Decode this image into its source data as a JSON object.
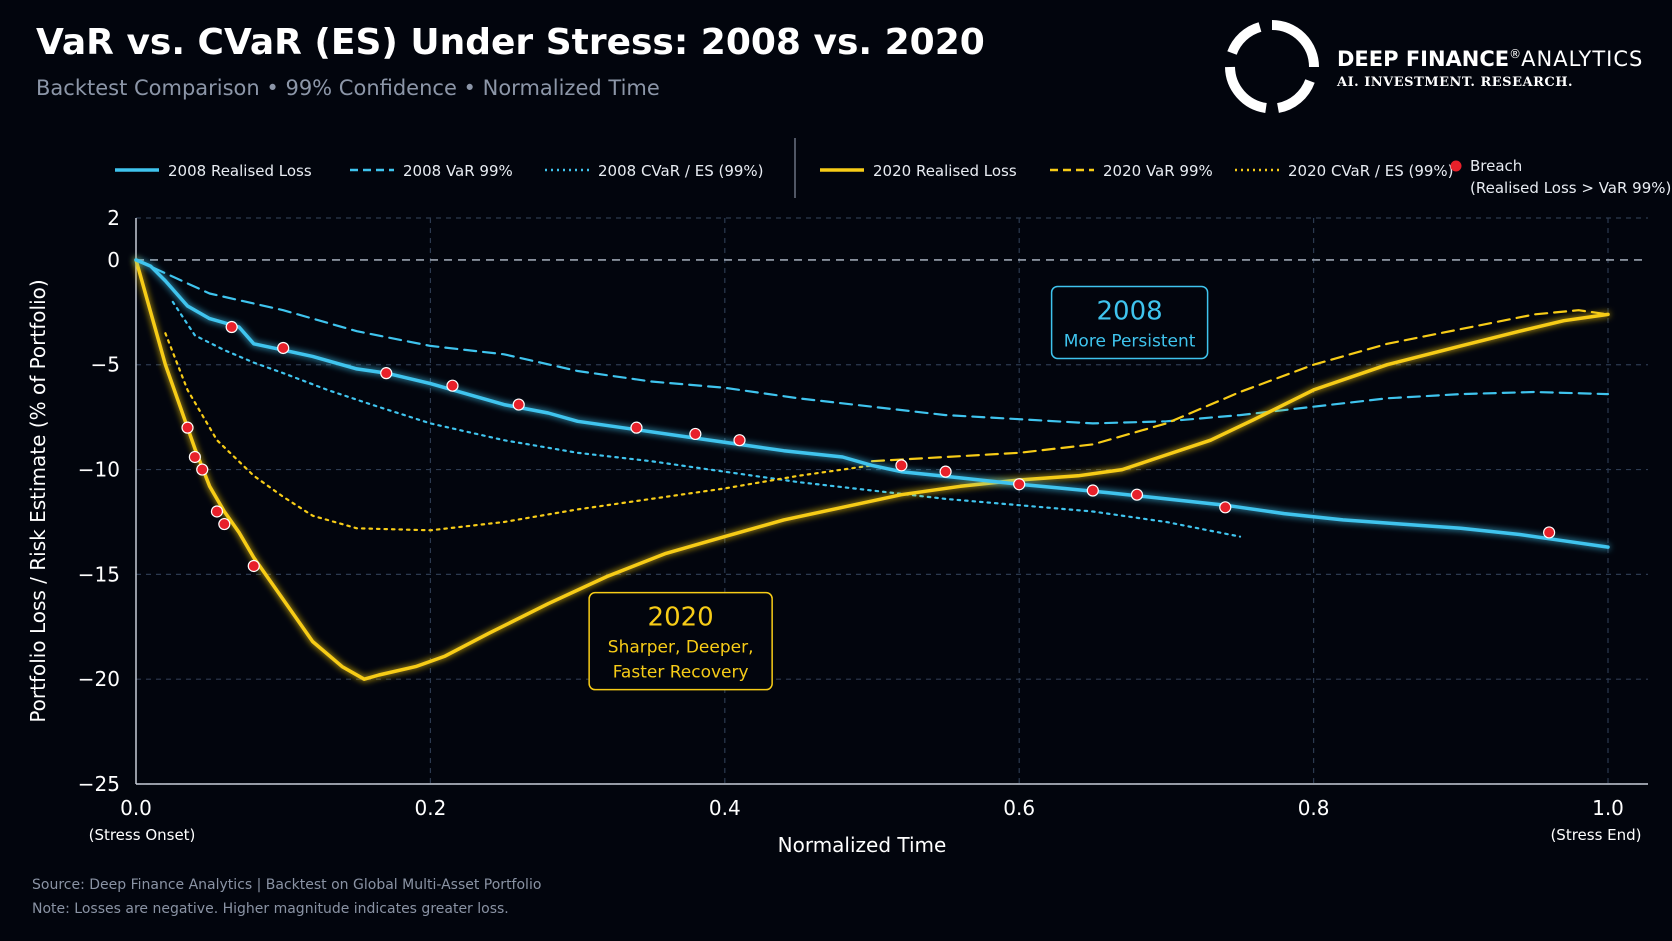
{
  "header": {
    "title": "VaR vs. CVaR (ES) Under Stress: 2008 vs. 2020",
    "subtitle": "Backtest Comparison • 99% Confidence • Normalized Time"
  },
  "brand": {
    "name_bold": "DEEP FINANCE",
    "registered": "®",
    "name_light": "ANALYTICS",
    "tagline": "AI. INVESTMENT. RESEARCH."
  },
  "footer": {
    "source": "Source: Deep Finance Analytics  |  Backtest on Global Multi-Asset Portfolio",
    "note": "Note: Losses are negative. Higher magnitude indicates greater loss."
  },
  "colors": {
    "background": "#02050d",
    "blue": "#3fc4ee",
    "yellow": "#f7cc17",
    "breach": "#e8202a",
    "grid": "#2c3a50"
  },
  "chart_data": {
    "type": "line",
    "xlabel": "Normalized Time",
    "ylabel": "Portfolio Loss / Risk Estimate (% of Portfolio)",
    "xlim": [
      0,
      1
    ],
    "ylim": [
      -25,
      2
    ],
    "x_ticks": [
      {
        "value": 0.0,
        "label": "0.0",
        "sub": "(Stress Onset)"
      },
      {
        "value": 0.2,
        "label": "0.2",
        "sub": ""
      },
      {
        "value": 0.4,
        "label": "0.4",
        "sub": ""
      },
      {
        "value": 0.6,
        "label": "0.6",
        "sub": ""
      },
      {
        "value": 0.8,
        "label": "0.8",
        "sub": ""
      },
      {
        "value": 1.0,
        "label": "1.0",
        "sub": "(Stress End)"
      }
    ],
    "y_ticks": [
      {
        "value": 2,
        "label": "2"
      },
      {
        "value": 0,
        "label": "0"
      },
      {
        "value": -5,
        "label": "−5"
      },
      {
        "value": -10,
        "label": "−10"
      },
      {
        "value": -15,
        "label": "−15"
      },
      {
        "value": -20,
        "label": "−20"
      },
      {
        "value": -25,
        "label": "−25"
      }
    ],
    "grid": true,
    "zero_line": true,
    "legend_position": "top",
    "series": [
      {
        "name": "2008 Realised Loss",
        "color": "#3fc4ee",
        "style": "solid",
        "width": 3.5,
        "glow": true,
        "x": [
          0,
          0.01,
          0.02,
          0.035,
          0.05,
          0.07,
          0.08,
          0.1,
          0.12,
          0.15,
          0.17,
          0.2,
          0.23,
          0.25,
          0.28,
          0.3,
          0.34,
          0.38,
          0.41,
          0.44,
          0.48,
          0.5,
          0.52,
          0.56,
          0.6,
          0.63,
          0.66,
          0.7,
          0.74,
          0.78,
          0.82,
          0.86,
          0.9,
          0.94,
          0.97,
          1.0
        ],
        "y": [
          0,
          -0.3,
          -1.0,
          -2.2,
          -2.8,
          -3.2,
          -4.0,
          -4.3,
          -4.6,
          -5.2,
          -5.4,
          -5.9,
          -6.5,
          -6.9,
          -7.3,
          -7.7,
          -8.1,
          -8.5,
          -8.8,
          -9.1,
          -9.4,
          -9.8,
          -10.1,
          -10.4,
          -10.7,
          -10.9,
          -11.1,
          -11.4,
          -11.7,
          -12.1,
          -12.4,
          -12.6,
          -12.8,
          -13.1,
          -13.4,
          -13.7
        ]
      },
      {
        "name": "2008 VaR 99%",
        "color": "#3fc4ee",
        "style": "dashed",
        "width": 2.2,
        "x": [
          0,
          0.05,
          0.1,
          0.15,
          0.2,
          0.25,
          0.3,
          0.35,
          0.4,
          0.45,
          0.5,
          0.55,
          0.6,
          0.65,
          0.7,
          0.75,
          0.8,
          0.85,
          0.9,
          0.95,
          1.0
        ],
        "y": [
          0,
          -1.6,
          -2.4,
          -3.4,
          -4.1,
          -4.5,
          -5.3,
          -5.8,
          -6.1,
          -6.6,
          -7.0,
          -7.4,
          -7.6,
          -7.8,
          -7.7,
          -7.4,
          -7.0,
          -6.6,
          -6.4,
          -6.3,
          -6.4
        ]
      },
      {
        "name": "2008 CVaR / ES (99%)",
        "color": "#3fc4ee",
        "style": "dotted",
        "width": 2.2,
        "x": [
          0.025,
          0.04,
          0.06,
          0.08,
          0.1,
          0.13,
          0.16,
          0.2,
          0.25,
          0.3,
          0.35,
          0.4,
          0.45,
          0.5,
          0.55,
          0.6,
          0.65,
          0.7,
          0.75
        ],
        "y": [
          -2.0,
          -3.6,
          -4.3,
          -4.9,
          -5.4,
          -6.2,
          -6.9,
          -7.8,
          -8.6,
          -9.2,
          -9.6,
          -10.1,
          -10.6,
          -11.0,
          -11.4,
          -11.7,
          -12.0,
          -12.5,
          -13.2
        ]
      },
      {
        "name": "2020 Realised Loss",
        "color": "#f7cc17",
        "style": "solid",
        "width": 3.5,
        "glow": true,
        "x": [
          0,
          0.01,
          0.02,
          0.03,
          0.035,
          0.04,
          0.05,
          0.06,
          0.07,
          0.08,
          0.1,
          0.12,
          0.14,
          0.155,
          0.165,
          0.19,
          0.21,
          0.24,
          0.28,
          0.32,
          0.36,
          0.4,
          0.44,
          0.48,
          0.52,
          0.56,
          0.6,
          0.64,
          0.67,
          0.7,
          0.73,
          0.76,
          0.8,
          0.85,
          0.9,
          0.94,
          0.97,
          1.0
        ],
        "y": [
          0,
          -2.5,
          -5.0,
          -7.0,
          -8.0,
          -9.0,
          -10.8,
          -12.0,
          -13.0,
          -14.2,
          -16.2,
          -18.2,
          -19.4,
          -20.0,
          -19.8,
          -19.4,
          -18.9,
          -17.8,
          -16.4,
          -15.1,
          -14.0,
          -13.2,
          -12.4,
          -11.8,
          -11.2,
          -10.8,
          -10.5,
          -10.3,
          -10.0,
          -9.3,
          -8.6,
          -7.6,
          -6.2,
          -5.0,
          -4.1,
          -3.4,
          -2.9,
          -2.6
        ]
      },
      {
        "name": "2020 VaR 99%",
        "color": "#f7cc17",
        "style": "dashed",
        "width": 2.2,
        "x": [
          0.0,
          0.1,
          0.2,
          0.3,
          0.4,
          0.5,
          0.55,
          0.6,
          0.65,
          0.7,
          0.75,
          0.8,
          0.85,
          0.9,
          0.95,
          0.98,
          1.0
        ],
        "y": [
          0,
          0,
          0,
          0,
          0,
          0,
          0,
          0,
          0,
          0,
          0,
          0,
          0,
          0,
          0,
          0,
          0
        ],
        "x2": [
          0.5,
          0.55,
          0.6,
          0.65,
          0.7,
          0.75,
          0.8,
          0.85,
          0.9,
          0.95,
          0.98,
          1.0
        ],
        "y2": [
          -9.6,
          -9.4,
          -9.2,
          -8.8,
          -7.8,
          -6.3,
          -5.0,
          -4.0,
          -3.3,
          -2.6,
          -2.4,
          -2.6
        ]
      },
      {
        "name": "2020 CVaR / ES (99%)",
        "color": "#f7cc17",
        "style": "dotted",
        "width": 2.2,
        "x": [
          0.02,
          0.035,
          0.055,
          0.08,
          0.1,
          0.12,
          0.15,
          0.2,
          0.25,
          0.3,
          0.35,
          0.4,
          0.45,
          0.5
        ],
        "y": [
          -3.5,
          -6.2,
          -8.6,
          -10.3,
          -11.3,
          -12.2,
          -12.8,
          -12.9,
          -12.5,
          -11.9,
          -11.4,
          -10.9,
          -10.3,
          -9.8
        ]
      }
    ],
    "breaches_2008": {
      "x": [
        0.065,
        0.1,
        0.17,
        0.215,
        0.26,
        0.34,
        0.38,
        0.41,
        0.52,
        0.55,
        0.6,
        0.65,
        0.74
      ],
      "y": [
        -3.2,
        -4.2,
        -5.4,
        -6.0,
        -6.9,
        -8.0,
        -8.3,
        -8.6,
        -9.8,
        -10.1,
        -10.7,
        -11.0,
        -11.8
      ]
    },
    "breaches_2020": {
      "x": [
        0.035,
        0.04,
        0.045,
        0.055,
        0.06,
        0.08,
        0.68,
        0.96
      ],
      "y": [
        -8.0,
        -9.4,
        -10.0,
        -12.0,
        -12.6,
        -14.6,
        -11.2,
        -13.0
      ]
    },
    "legend": [
      {
        "label": "2008 Realised Loss",
        "kind": "solid",
        "color": "#3fc4ee"
      },
      {
        "label": "2008 VaR 99%",
        "kind": "dashed",
        "color": "#3fc4ee"
      },
      {
        "label": "2008 CVaR / ES (99%)",
        "kind": "dotted",
        "color": "#3fc4ee"
      },
      {
        "label": "2020 Realised Loss",
        "kind": "solid",
        "color": "#f7cc17"
      },
      {
        "label": "2020 VaR 99%",
        "kind": "dashed",
        "color": "#f7cc17"
      },
      {
        "label": "2020 CVaR / ES (99%)",
        "kind": "dotted",
        "color": "#f7cc17"
      },
      {
        "label": "Breach",
        "kind": "dot",
        "color": "#e8202a",
        "sublabel": "(Realised Loss > VaR 99%)"
      }
    ],
    "annotations": [
      {
        "id": "box-2008",
        "title": "2008",
        "lines": [
          "More Persistent"
        ],
        "color": "#3fc4ee",
        "anchor_x": 0.675,
        "anchor_y": -4.7
      },
      {
        "id": "box-2020",
        "title": "2020",
        "lines": [
          "Sharper, Deeper,",
          "Faster Recovery"
        ],
        "color": "#f7cc17",
        "anchor_x": 0.37,
        "anchor_y": -20.5
      }
    ]
  }
}
